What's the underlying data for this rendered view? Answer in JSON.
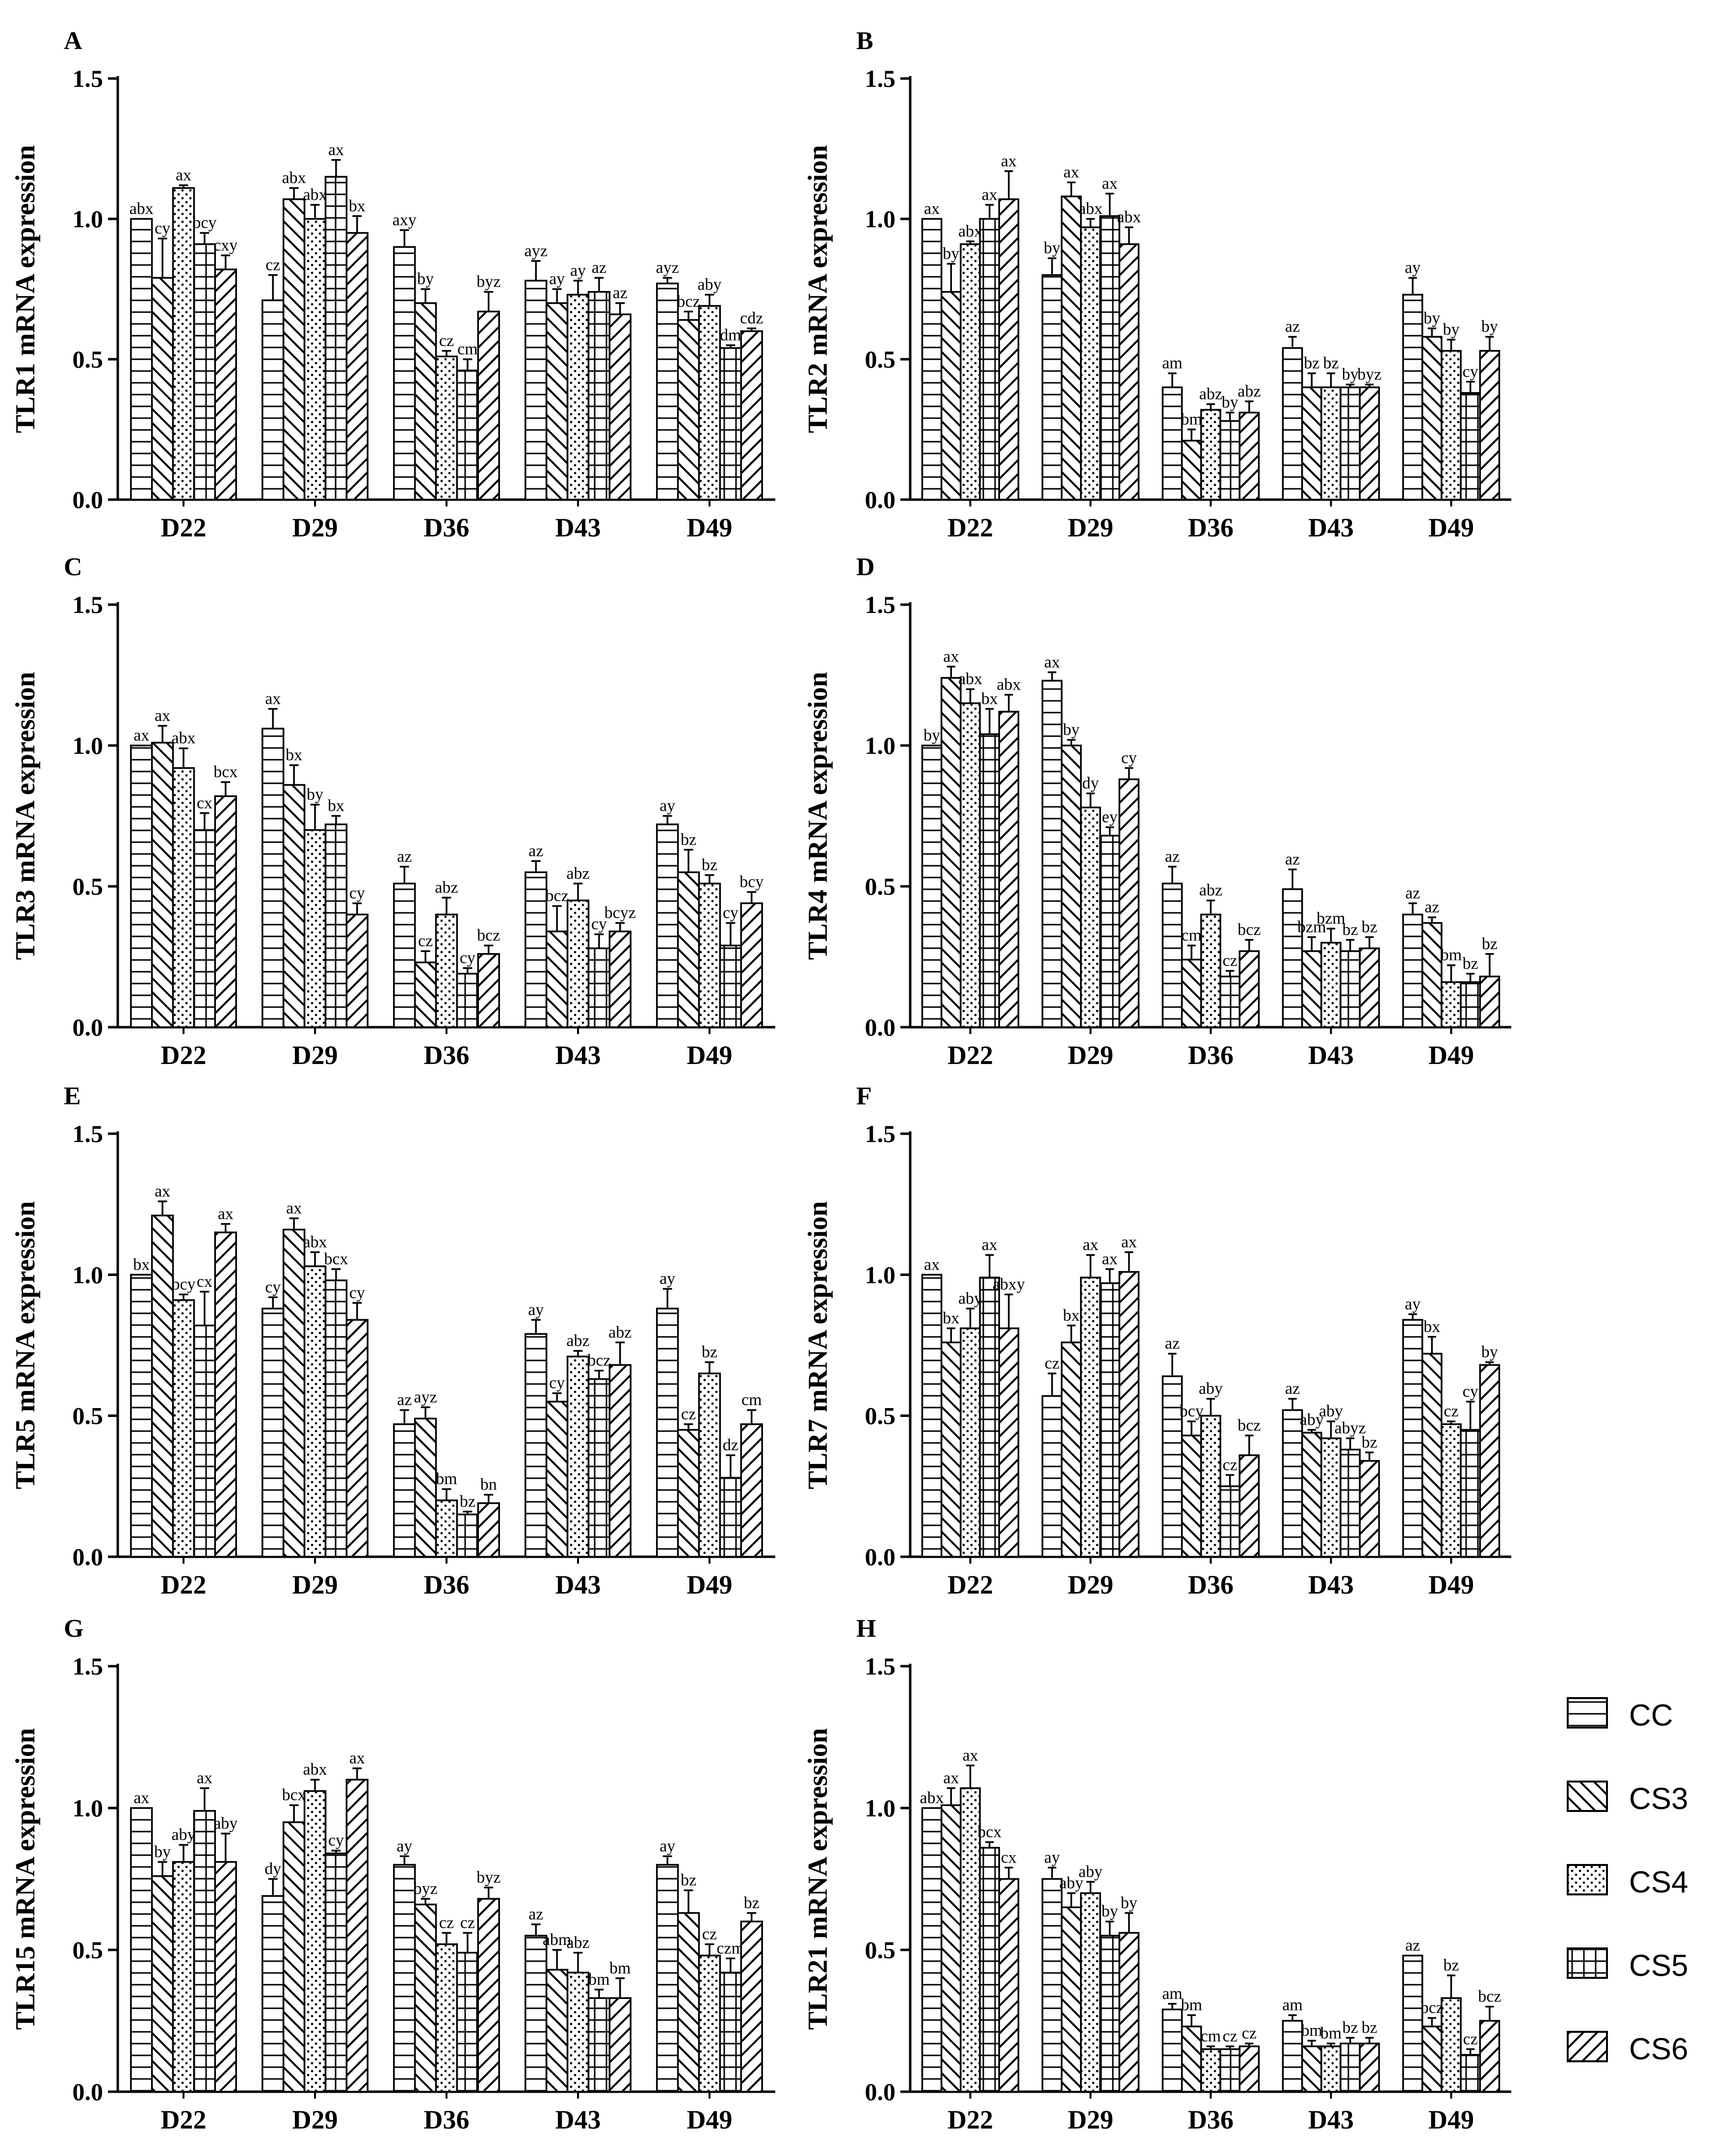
{
  "figure": {
    "groups": [
      "D22",
      "D29",
      "D36",
      "D43",
      "D49"
    ],
    "series_names": [
      "CC",
      "CS3",
      "CS4",
      "CS5",
      "CS6"
    ],
    "y_ticks": [
      "0.0",
      "0.5",
      "1.0",
      "1.5"
    ]
  },
  "legend": {
    "items": [
      {
        "label": "CC",
        "pattern": "horizontal-lines"
      },
      {
        "label": "CS3",
        "pattern": "back-diagonal"
      },
      {
        "label": "CS4",
        "pattern": "dots"
      },
      {
        "label": "CS5",
        "pattern": "grid"
      },
      {
        "label": "CS6",
        "pattern": "forward-diagonal"
      }
    ]
  },
  "chart_data": [
    {
      "panel": "A",
      "type": "bar",
      "ylabel": "TLR1 mRNA expression",
      "ylim": [
        0,
        1.5
      ],
      "categories": [
        "D22",
        "D29",
        "D36",
        "D43",
        "D49"
      ],
      "series": [
        {
          "name": "CC",
          "values": [
            1.0,
            0.71,
            0.9,
            0.78,
            0.77
          ],
          "errors": [
            0.0,
            0.09,
            0.06,
            0.07,
            0.02
          ],
          "letters": [
            "abx",
            "cz",
            "axy",
            "ayz",
            "ayz"
          ]
        },
        {
          "name": "CS3",
          "values": [
            0.79,
            1.07,
            0.7,
            0.7,
            0.64
          ],
          "errors": [
            0.14,
            0.04,
            0.05,
            0.05,
            0.03
          ],
          "letters": [
            "cy",
            "abx",
            "by",
            "ay",
            "bcz"
          ]
        },
        {
          "name": "CS4",
          "values": [
            1.11,
            1.0,
            0.51,
            0.73,
            0.69
          ],
          "errors": [
            0.01,
            0.05,
            0.02,
            0.05,
            0.04
          ],
          "letters": [
            "ax",
            "abx",
            "cz",
            "ay",
            "aby"
          ]
        },
        {
          "name": "CS5",
          "values": [
            0.91,
            1.15,
            0.46,
            0.74,
            0.54
          ],
          "errors": [
            0.04,
            0.06,
            0.04,
            0.05,
            0.01
          ],
          "letters": [
            "bcy",
            "ax",
            "cm",
            "az",
            "dm"
          ]
        },
        {
          "name": "CS6",
          "values": [
            0.82,
            0.95,
            0.67,
            0.66,
            0.6
          ],
          "errors": [
            0.05,
            0.06,
            0.07,
            0.04,
            0.01
          ],
          "letters": [
            "cxy",
            "bx",
            "byz",
            "az",
            "cdz"
          ]
        }
      ]
    },
    {
      "panel": "B",
      "type": "bar",
      "ylabel": "TLR2 mRNA expression",
      "ylim": [
        0,
        1.5
      ],
      "categories": [
        "D22",
        "D29",
        "D36",
        "D43",
        "D49"
      ],
      "series": [
        {
          "name": "CC",
          "values": [
            1.0,
            0.8,
            0.4,
            0.54,
            0.73
          ],
          "errors": [
            0.0,
            0.06,
            0.05,
            0.04,
            0.06
          ],
          "letters": [
            "ax",
            "by",
            "am",
            "az",
            "ay"
          ]
        },
        {
          "name": "CS3",
          "values": [
            0.74,
            1.08,
            0.21,
            0.4,
            0.58
          ],
          "errors": [
            0.1,
            0.05,
            0.04,
            0.05,
            0.03
          ],
          "letters": [
            "by",
            "ax",
            "bm",
            "bz",
            "by"
          ]
        },
        {
          "name": "CS4",
          "values": [
            0.91,
            0.97,
            0.32,
            0.4,
            0.53
          ],
          "errors": [
            0.01,
            0.03,
            0.02,
            0.05,
            0.04
          ],
          "letters": [
            "abx",
            "abx",
            "abz",
            "bz",
            "by"
          ]
        },
        {
          "name": "CS5",
          "values": [
            1.0,
            1.01,
            0.28,
            0.4,
            0.38
          ],
          "errors": [
            0.05,
            0.08,
            0.03,
            0.01,
            0.04
          ],
          "letters": [
            "ax",
            "ax",
            "by",
            "by",
            "cy"
          ]
        },
        {
          "name": "CS6",
          "values": [
            1.07,
            0.91,
            0.31,
            0.4,
            0.53
          ],
          "errors": [
            0.1,
            0.06,
            0.04,
            0.01,
            0.05
          ],
          "letters": [
            "ax",
            "abx",
            "abz",
            "byz",
            "by"
          ]
        }
      ]
    },
    {
      "panel": "C",
      "type": "bar",
      "ylabel": "TLR3 mRNA expression",
      "ylim": [
        0,
        1.5
      ],
      "categories": [
        "D22",
        "D29",
        "D36",
        "D43",
        "D49"
      ],
      "series": [
        {
          "name": "CC",
          "values": [
            1.0,
            1.06,
            0.51,
            0.55,
            0.72
          ],
          "errors": [
            0.0,
            0.07,
            0.06,
            0.04,
            0.03
          ],
          "letters": [
            "ax",
            "ax",
            "az",
            "az",
            "ay"
          ]
        },
        {
          "name": "CS3",
          "values": [
            1.01,
            0.86,
            0.23,
            0.34,
            0.55
          ],
          "errors": [
            0.06,
            0.07,
            0.04,
            0.09,
            0.08
          ],
          "letters": [
            "ax",
            "bx",
            "cz",
            "bcz",
            "bz"
          ]
        },
        {
          "name": "CS4",
          "values": [
            0.92,
            0.7,
            0.4,
            0.45,
            0.51
          ],
          "errors": [
            0.07,
            0.09,
            0.06,
            0.06,
            0.03
          ],
          "letters": [
            "abx",
            "by",
            "abz",
            "abz",
            "bz"
          ]
        },
        {
          "name": "CS5",
          "values": [
            0.7,
            0.72,
            0.19,
            0.28,
            0.29
          ],
          "errors": [
            0.06,
            0.03,
            0.02,
            0.05,
            0.08
          ],
          "letters": [
            "cx",
            "bx",
            "cy",
            "cy",
            "cy"
          ]
        },
        {
          "name": "CS6",
          "values": [
            0.82,
            0.4,
            0.26,
            0.34,
            0.44
          ],
          "errors": [
            0.05,
            0.04,
            0.03,
            0.03,
            0.04
          ],
          "letters": [
            "bcx",
            "cy",
            "bcz",
            "bcyz",
            "bcy"
          ]
        }
      ]
    },
    {
      "panel": "D",
      "type": "bar",
      "ylabel": "TLR4 mRNA expression",
      "ylim": [
        0,
        1.5
      ],
      "categories": [
        "D22",
        "D29",
        "D36",
        "D43",
        "D49"
      ],
      "series": [
        {
          "name": "CC",
          "values": [
            1.0,
            1.23,
            0.51,
            0.49,
            0.4
          ],
          "errors": [
            0.0,
            0.03,
            0.06,
            0.07,
            0.04
          ],
          "letters": [
            "by",
            "ax",
            "az",
            "az",
            "az"
          ]
        },
        {
          "name": "CS3",
          "values": [
            1.24,
            1.0,
            0.24,
            0.27,
            0.37
          ],
          "errors": [
            0.04,
            0.02,
            0.05,
            0.05,
            0.02
          ],
          "letters": [
            "ax",
            "by",
            "cm",
            "bzm",
            "az"
          ]
        },
        {
          "name": "CS4",
          "values": [
            1.15,
            0.78,
            0.4,
            0.3,
            0.16
          ],
          "errors": [
            0.05,
            0.05,
            0.05,
            0.05,
            0.06
          ],
          "letters": [
            "abx",
            "dy",
            "abz",
            "bzm",
            "bm"
          ]
        },
        {
          "name": "CS5",
          "values": [
            1.04,
            0.68,
            0.18,
            0.27,
            0.16
          ],
          "errors": [
            0.09,
            0.03,
            0.02,
            0.04,
            0.03
          ],
          "letters": [
            "bx",
            "ey",
            "cz",
            "bz",
            "bz"
          ]
        },
        {
          "name": "CS6",
          "values": [
            1.12,
            0.88,
            0.27,
            0.28,
            0.18
          ],
          "errors": [
            0.06,
            0.04,
            0.04,
            0.04,
            0.08
          ],
          "letters": [
            "abx",
            "cy",
            "bcz",
            "bz",
            "bz"
          ]
        }
      ]
    },
    {
      "panel": "E",
      "type": "bar",
      "ylabel": "TLR5 mRNA expression",
      "ylim": [
        0,
        1.5
      ],
      "categories": [
        "D22",
        "D29",
        "D36",
        "D43",
        "D49"
      ],
      "series": [
        {
          "name": "CC",
          "values": [
            1.0,
            0.88,
            0.47,
            0.79,
            0.88
          ],
          "errors": [
            0.0,
            0.04,
            0.05,
            0.05,
            0.07
          ],
          "letters": [
            "bx",
            "cy",
            "az",
            "ay",
            "ay"
          ]
        },
        {
          "name": "CS3",
          "values": [
            1.21,
            1.16,
            0.49,
            0.55,
            0.45
          ],
          "errors": [
            0.05,
            0.04,
            0.04,
            0.03,
            0.02
          ],
          "letters": [
            "ax",
            "ax",
            "ayz",
            "cy",
            "cz"
          ]
        },
        {
          "name": "CS4",
          "values": [
            0.91,
            1.03,
            0.2,
            0.71,
            0.65
          ],
          "errors": [
            0.02,
            0.05,
            0.04,
            0.02,
            0.04
          ],
          "letters": [
            "bcy",
            "abx",
            "bm",
            "abz",
            "bz"
          ]
        },
        {
          "name": "CS5",
          "values": [
            0.82,
            0.98,
            0.15,
            0.63,
            0.28
          ],
          "errors": [
            0.12,
            0.04,
            0.01,
            0.03,
            0.08
          ],
          "letters": [
            "cx",
            "bcx",
            "bz",
            "bcz",
            "dz"
          ]
        },
        {
          "name": "CS6",
          "values": [
            1.15,
            0.84,
            0.19,
            0.68,
            0.47
          ],
          "errors": [
            0.03,
            0.06,
            0.03,
            0.08,
            0.05
          ],
          "letters": [
            "ax",
            "cy",
            "bn",
            "abz",
            "cm"
          ]
        }
      ]
    },
    {
      "panel": "F",
      "type": "bar",
      "ylabel": "TLR7 mRNA expression",
      "ylim": [
        0,
        1.5
      ],
      "categories": [
        "D22",
        "D29",
        "D36",
        "D43",
        "D49"
      ],
      "series": [
        {
          "name": "CC",
          "values": [
            1.0,
            0.57,
            0.64,
            0.52,
            0.84
          ],
          "errors": [
            0.0,
            0.08,
            0.08,
            0.04,
            0.02
          ],
          "letters": [
            "ax",
            "cz",
            "az",
            "az",
            "ay"
          ]
        },
        {
          "name": "CS3",
          "values": [
            0.76,
            0.76,
            0.43,
            0.44,
            0.72
          ],
          "errors": [
            0.05,
            0.06,
            0.05,
            0.01,
            0.06
          ],
          "letters": [
            "bx",
            "bx",
            "bcy",
            "aby",
            "bx"
          ]
        },
        {
          "name": "CS4",
          "values": [
            0.81,
            0.99,
            0.5,
            0.42,
            0.47
          ],
          "errors": [
            0.07,
            0.08,
            0.06,
            0.06,
            0.01
          ],
          "letters": [
            "aby",
            "ax",
            "aby",
            "aby",
            "cz"
          ]
        },
        {
          "name": "CS5",
          "values": [
            0.99,
            0.97,
            0.25,
            0.38,
            0.45
          ],
          "errors": [
            0.08,
            0.05,
            0.04,
            0.04,
            0.1
          ],
          "letters": [
            "ax",
            "ax",
            "cz",
            "abyz",
            "cy"
          ]
        },
        {
          "name": "CS6",
          "values": [
            0.81,
            1.01,
            0.36,
            0.34,
            0.68
          ],
          "errors": [
            0.12,
            0.07,
            0.07,
            0.03,
            0.01
          ],
          "letters": [
            "abxy",
            "ax",
            "bcz",
            "bz",
            "by"
          ]
        }
      ]
    },
    {
      "panel": "G",
      "type": "bar",
      "ylabel": "TLR15 mRNA expression",
      "ylim": [
        0,
        1.5
      ],
      "categories": [
        "D22",
        "D29",
        "D36",
        "D43",
        "D49"
      ],
      "series": [
        {
          "name": "CC",
          "values": [
            1.0,
            0.69,
            0.8,
            0.55,
            0.8
          ],
          "errors": [
            0.0,
            0.06,
            0.03,
            0.04,
            0.03
          ],
          "letters": [
            "ax",
            "dy",
            "ay",
            "az",
            "ay"
          ]
        },
        {
          "name": "CS3",
          "values": [
            0.76,
            0.95,
            0.66,
            0.43,
            0.63
          ],
          "errors": [
            0.05,
            0.06,
            0.02,
            0.07,
            0.08
          ],
          "letters": [
            "by",
            "bcx",
            "byz",
            "abm",
            "bz"
          ]
        },
        {
          "name": "CS4",
          "values": [
            0.81,
            1.06,
            0.52,
            0.42,
            0.48
          ],
          "errors": [
            0.06,
            0.04,
            0.04,
            0.07,
            0.04
          ],
          "letters": [
            "aby",
            "abx",
            "cz",
            "abz",
            "cz"
          ]
        },
        {
          "name": "CS5",
          "values": [
            0.99,
            0.84,
            0.49,
            0.33,
            0.42
          ],
          "errors": [
            0.08,
            0.01,
            0.07,
            0.03,
            0.05
          ],
          "letters": [
            "ax",
            "cy",
            "cz",
            "bm",
            "czm"
          ]
        },
        {
          "name": "CS6",
          "values": [
            0.81,
            1.1,
            0.68,
            0.33,
            0.6
          ],
          "errors": [
            0.1,
            0.04,
            0.04,
            0.07,
            0.03
          ],
          "letters": [
            "aby",
            "ax",
            "byz",
            "bm",
            "bz"
          ]
        }
      ]
    },
    {
      "panel": "H",
      "type": "bar",
      "ylabel": "TLR21 mRNA expression",
      "ylim": [
        0,
        1.5
      ],
      "categories": [
        "D22",
        "D29",
        "D36",
        "D43",
        "D49"
      ],
      "series": [
        {
          "name": "CC",
          "values": [
            1.0,
            0.75,
            0.29,
            0.25,
            0.48
          ],
          "errors": [
            0.0,
            0.04,
            0.02,
            0.02,
            0.0
          ],
          "letters": [
            "abx",
            "ay",
            "am",
            "am",
            "az"
          ]
        },
        {
          "name": "CS3",
          "values": [
            1.01,
            0.65,
            0.23,
            0.16,
            0.23
          ],
          "errors": [
            0.06,
            0.05,
            0.04,
            0.02,
            0.03
          ],
          "letters": [
            "ax",
            "aby",
            "bm",
            "bm",
            "bcz"
          ]
        },
        {
          "name": "CS4",
          "values": [
            1.07,
            0.7,
            0.15,
            0.16,
            0.33
          ],
          "errors": [
            0.08,
            0.04,
            0.01,
            0.01,
            0.08
          ],
          "letters": [
            "ax",
            "aby",
            "cm",
            "bm",
            "bz"
          ]
        },
        {
          "name": "CS5",
          "values": [
            0.86,
            0.55,
            0.15,
            0.17,
            0.13
          ],
          "errors": [
            0.02,
            0.05,
            0.01,
            0.02,
            0.02
          ],
          "letters": [
            "bcx",
            "by",
            "cz",
            "bz",
            "cz"
          ]
        },
        {
          "name": "CS6",
          "values": [
            0.75,
            0.56,
            0.16,
            0.17,
            0.25
          ],
          "errors": [
            0.04,
            0.07,
            0.01,
            0.02,
            0.05
          ],
          "letters": [
            "cx",
            "by",
            "cz",
            "bz",
            "bcz"
          ]
        }
      ]
    }
  ]
}
